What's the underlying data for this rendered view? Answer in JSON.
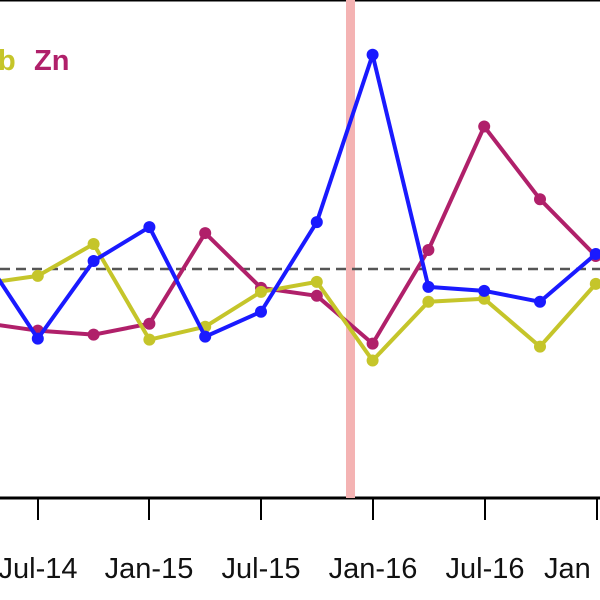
{
  "chart_data": {
    "type": "line",
    "x_tick_labels": [
      "Jul-14",
      "Jan-15",
      "Jul-15",
      "Jan-16",
      "Jul-16",
      "Jan"
    ],
    "x": [
      "Feb-14",
      "May-14",
      "Aug-14",
      "Nov-14",
      "Feb-15",
      "May-15",
      "Aug-15",
      "Nov-15",
      "Feb-16",
      "May-16",
      "Aug-16",
      "Nov-16",
      "Feb-17"
    ],
    "xlim": [
      "2014-01-01",
      "2017-03-01"
    ],
    "ylim": [
      0,
      500
    ],
    "reference_line": {
      "label": "",
      "value": 269,
      "style": "dashed",
      "color": "#555555"
    },
    "event_marker": {
      "x": "Dec-15",
      "color": "#f4b3b3"
    },
    "legend": {
      "placement": "top-left",
      "entries": [
        "b",
        "Zn"
      ]
    },
    "series": [
      {
        "name": "",
        "color": "#1a1aff",
        "values": [
          255,
          340,
          262,
          228,
          338,
          313,
          223,
          55,
          288,
          292,
          303,
          255,
          250
        ]
      },
      {
        "name": "b",
        "color": "#c5c52a",
        "values": [
          285,
          277,
          245,
          341,
          328,
          293,
          283,
          362,
          303,
          300,
          348,
          285,
          283
        ]
      },
      {
        "name": "Zn",
        "color": "#b0206a",
        "values": [
          324,
          332,
          336,
          325,
          234,
          289,
          297,
          345,
          251,
          127,
          200,
          257,
          250
        ]
      }
    ]
  }
}
